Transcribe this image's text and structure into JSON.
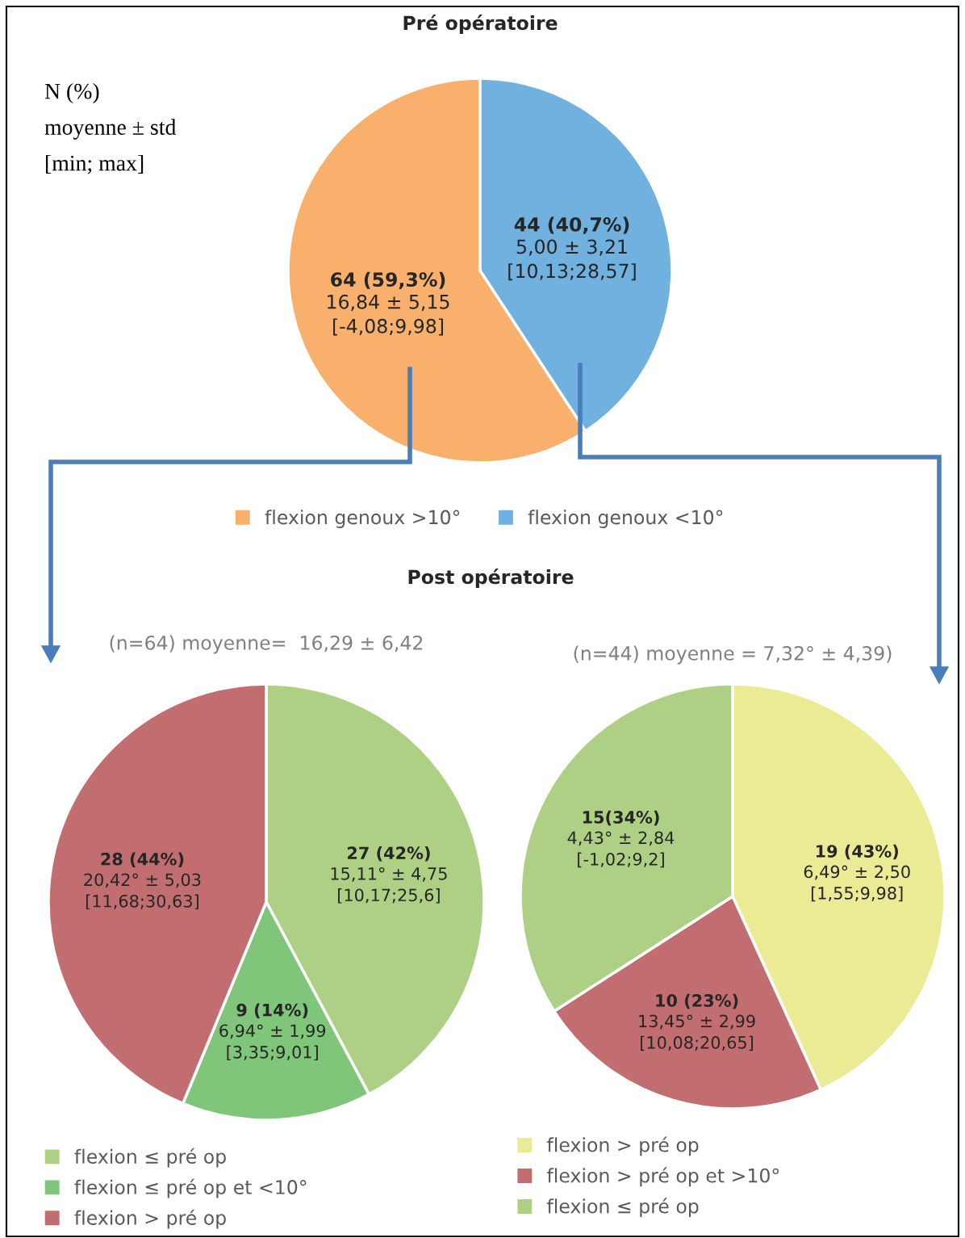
{
  "chart_data": [
    {
      "type": "pie",
      "title": "Pré opératoire",
      "annotations": [
        "N (%)\nmoyenne ± std\n[min; max]"
      ],
      "legend": "bottom",
      "categories": [
        "flexion genoux >10°",
        "flexion genoux <10°"
      ],
      "values": [
        64,
        44
      ],
      "colors": [
        "#f9b06c",
        "#70b1e0"
      ],
      "value_labels": [
        "64 (59,3%)\n16,84 ± 5,15\n[-4,08;9,98]",
        "44 (40,7%)\n5,00 ± 3,21\n[10,13;28,57]"
      ]
    },
    {
      "type": "pie",
      "title": "(n=64) moyenne=  16,29 ± 6,42",
      "annotations": [
        "Post opératoire"
      ],
      "legend": "bottom left",
      "categories": [
        "flexion ≤ pré op",
        "flexion ≤ pré op et <10°",
        "flexion > pré op"
      ],
      "values": [
        27,
        9,
        28
      ],
      "colors": [
        "#aed085",
        "#7fc67a",
        "#c26e70"
      ],
      "value_labels": [
        "27 (42%)\n15,11° ± 4,75\n[10,17;25,6]",
        "9 (14%)\n6,94° ± 1,99\n[3,35;9,01]",
        "28 (44%)\n20,42° ± 5,03\n[11,68;30,63]"
      ]
    },
    {
      "type": "pie",
      "title": "(n=44) moyenne = 7,32° ± 4,39)",
      "legend": "bottom left",
      "categories": [
        "flexion > pré op",
        "flexion > pré op et >10°",
        "flexion ≤ pré op"
      ],
      "values": [
        19,
        10,
        15
      ],
      "colors": [
        "#ebeb96",
        "#c26e70",
        "#aed085"
      ],
      "value_labels": [
        "19 (43%)\n6,49° ± 2,50\n[1,55;9,98]",
        "10 (23%)\n13,45° ± 2,99\n[10,08;20,65]",
        "15(34%)\n4,43° ± 2,84\n[-1,02;9,2]"
      ]
    }
  ]
}
